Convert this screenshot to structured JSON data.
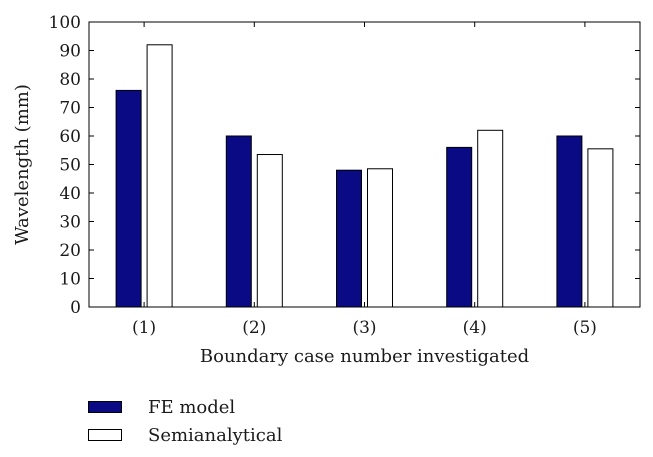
{
  "chart_data": {
    "type": "bar",
    "categories": [
      "(1)",
      "(2)",
      "(3)",
      "(4)",
      "(5)"
    ],
    "series": [
      {
        "name": "FE model",
        "values": [
          76,
          60,
          48,
          56,
          60
        ],
        "color": "#0a0a84"
      },
      {
        "name": "Semianalytical",
        "values": [
          92,
          53.5,
          48.5,
          62,
          55.5
        ],
        "color": "#ffffff"
      }
    ],
    "xlabel": "Boundary case number investigated",
    "ylabel": "Wavelength (mm)",
    "ylim": [
      0,
      100
    ],
    "yticks": [
      0,
      10,
      20,
      30,
      40,
      50,
      60,
      70,
      80,
      90,
      100
    ],
    "grid": false,
    "legend_position": "bottom-left"
  }
}
